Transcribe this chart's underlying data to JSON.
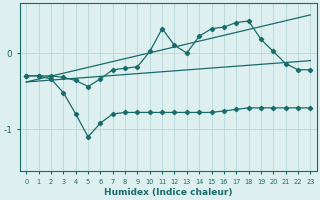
{
  "xlabel": "Humidex (Indice chaleur)",
  "background_color": "#ddf0ef",
  "grid_color": "#b8d8d8",
  "line_color": "#1a6b6b",
  "xlim": [
    -0.5,
    23.5
  ],
  "ylim": [
    -1.55,
    0.65
  ],
  "yticks": [
    0,
    -1
  ],
  "xticks": [
    0,
    1,
    2,
    3,
    4,
    5,
    6,
    7,
    8,
    9,
    10,
    11,
    12,
    13,
    14,
    15,
    16,
    17,
    18,
    19,
    20,
    21,
    22,
    23
  ],
  "line1_x": [
    0,
    1,
    2,
    3,
    4,
    5,
    6,
    7,
    8,
    9,
    10,
    11,
    12,
    13,
    14,
    15,
    16,
    17,
    18,
    19,
    20,
    21,
    22,
    23
  ],
  "line1_y": [
    -0.3,
    -0.3,
    -0.3,
    -0.32,
    -0.36,
    -0.44,
    -0.34,
    -0.22,
    -0.2,
    -0.18,
    0.02,
    0.32,
    0.1,
    0.0,
    0.22,
    0.32,
    0.34,
    0.4,
    0.42,
    0.18,
    0.02,
    -0.14,
    -0.22,
    -0.22
  ],
  "line2_x": [
    0,
    1,
    2,
    3,
    4,
    5,
    6,
    7,
    8,
    9,
    10,
    11,
    12,
    13,
    14,
    15,
    16,
    17,
    18,
    19,
    20,
    21,
    22,
    23
  ],
  "line2_y": [
    -0.3,
    -0.3,
    -0.34,
    -0.52,
    -0.8,
    -1.1,
    -0.92,
    -0.8,
    -0.78,
    -0.78,
    -0.78,
    -0.78,
    -0.78,
    -0.78,
    -0.78,
    -0.78,
    -0.76,
    -0.74,
    -0.72,
    -0.72,
    -0.72,
    -0.72,
    -0.72,
    -0.72
  ],
  "line3_x": [
    0,
    23
  ],
  "line3_y": [
    -0.38,
    0.5
  ],
  "line4_x": [
    0,
    23
  ],
  "line4_y": [
    -0.38,
    -0.1
  ]
}
